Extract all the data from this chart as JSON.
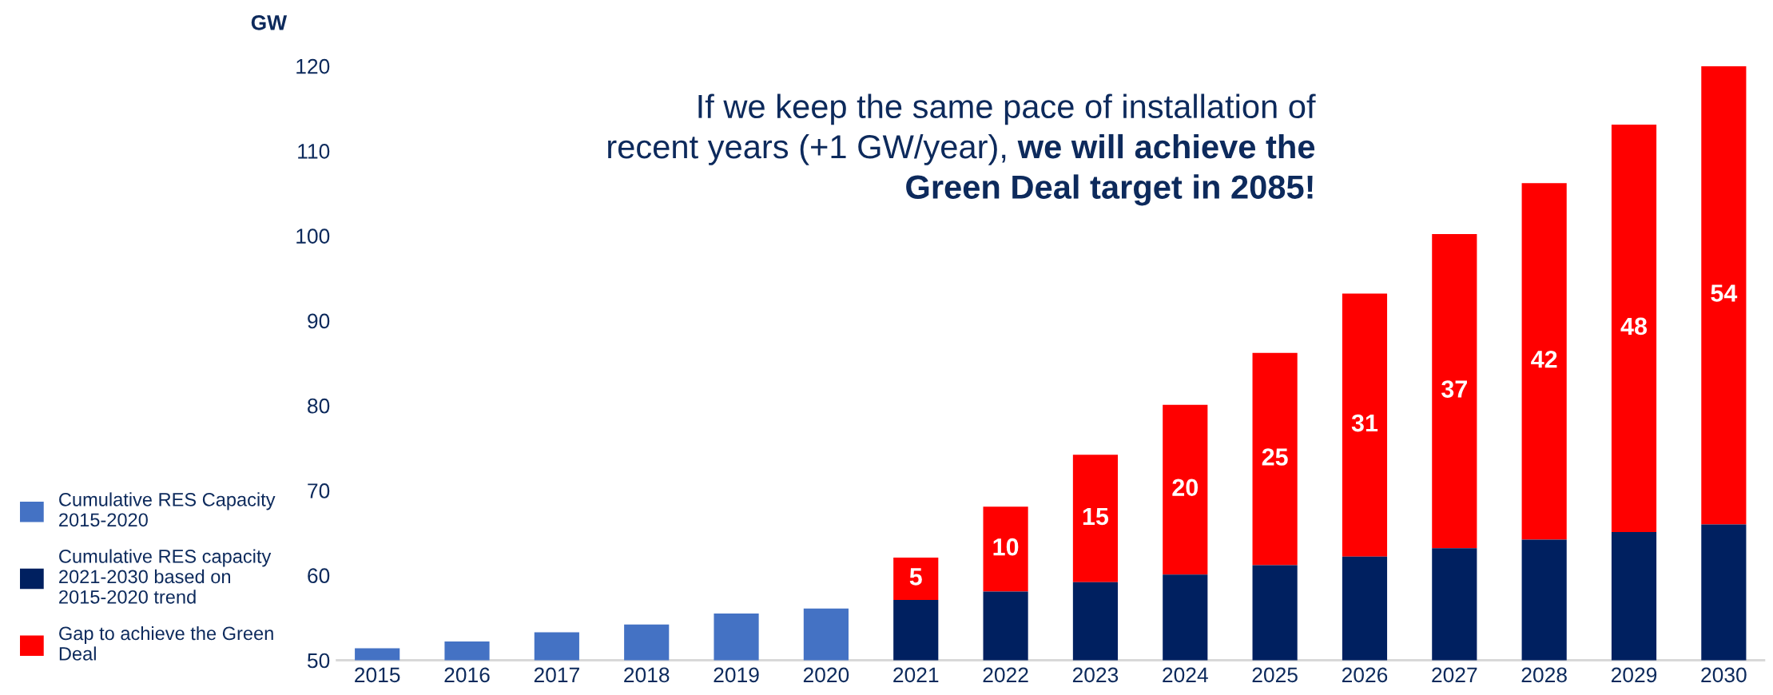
{
  "chart_data": {
    "type": "bar",
    "stacked": true,
    "ylabel": "GW",
    "categories": [
      "2015",
      "2016",
      "2017",
      "2018",
      "2019",
      "2020",
      "2021",
      "2022",
      "2023",
      "2024",
      "2025",
      "2026",
      "2027",
      "2028",
      "2029",
      "2030"
    ],
    "series": [
      {
        "name": "Cumulative RES Capacity 2015-2020",
        "color": "#4472c4",
        "values": [
          51.4,
          52.2,
          53.3,
          54.2,
          55.5,
          56.1,
          null,
          null,
          null,
          null,
          null,
          null,
          null,
          null,
          null,
          null
        ]
      },
      {
        "name": "Cumulative RES capacity 2021-2030 based on 2015-2020 trend",
        "color": "#002060",
        "values": [
          null,
          null,
          null,
          null,
          null,
          null,
          57.1,
          58.1,
          59.2,
          60.1,
          61.2,
          62.2,
          63.2,
          64.2,
          65.1,
          66.0
        ]
      },
      {
        "name": "Gap to achieve the Green Deal",
        "color": "#ff0000",
        "values": [
          null,
          null,
          null,
          null,
          null,
          null,
          5,
          10,
          15,
          20,
          25,
          31,
          37,
          42,
          48,
          54
        ],
        "base": [
          null,
          null,
          null,
          null,
          null,
          null,
          57.1,
          58.1,
          59.2,
          60.1,
          61.2,
          62.2,
          63.2,
          64.2,
          65.1,
          66.0
        ],
        "value_labels": [
          null,
          null,
          null,
          null,
          null,
          null,
          "5",
          "10",
          "15",
          "20",
          "25",
          "31",
          "37",
          "42",
          "48",
          "54"
        ]
      }
    ],
    "ylim": [
      50,
      120
    ],
    "yticks": [
      50,
      60,
      70,
      80,
      90,
      100,
      110,
      120
    ],
    "grid": false,
    "legend": "left",
    "annotations": [
      "If we keep the same pace of installation of\nrecent years (+1 GW/year),",
      "we will achieve the\nGreen Deal target in 2085!"
    ]
  }
}
